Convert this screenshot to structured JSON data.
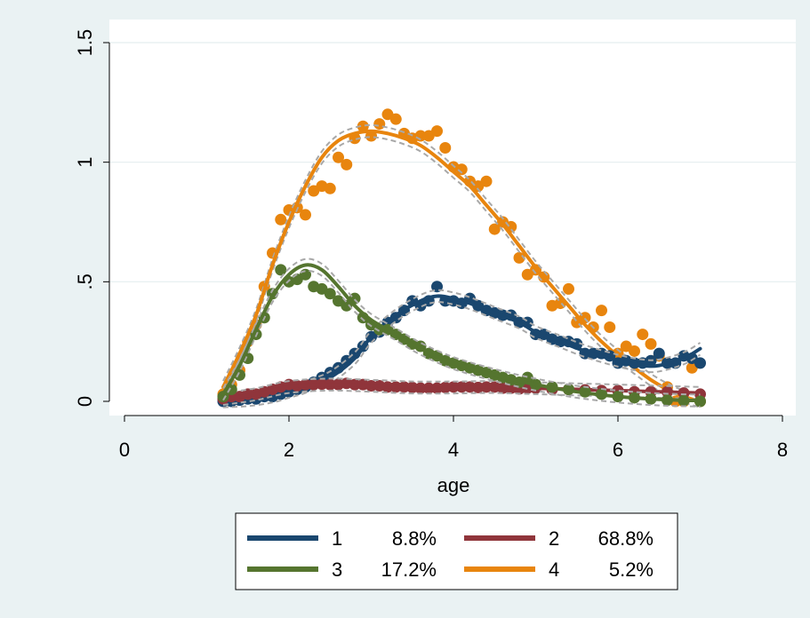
{
  "chart_data": {
    "type": "line",
    "title": "",
    "xlabel": "age",
    "ylabel": "",
    "xlim": [
      0,
      8
    ],
    "ylim": [
      0,
      1.5
    ],
    "x_ticks": [
      0,
      2,
      4,
      6,
      8
    ],
    "x_tick_labels": [
      "0",
      "2",
      "4",
      "6",
      "8"
    ],
    "y_ticks": [
      0,
      0.5,
      1,
      1.5
    ],
    "y_tick_labels": [
      "0",
      ".5",
      "1",
      "1.5"
    ],
    "grid": "horizontal",
    "legend_position": "bottom",
    "series": [
      {
        "name": "1",
        "share": "8.8%",
        "color": "#1a476f",
        "fit": [
          [
            1.2,
            0.0
          ],
          [
            1.5,
            0.005
          ],
          [
            1.8,
            0.02
          ],
          [
            2.0,
            0.04
          ],
          [
            2.2,
            0.06
          ],
          [
            2.5,
            0.1
          ],
          [
            2.8,
            0.18
          ],
          [
            3.0,
            0.27
          ],
          [
            3.3,
            0.36
          ],
          [
            3.6,
            0.42
          ],
          [
            3.8,
            0.44
          ],
          [
            4.0,
            0.43
          ],
          [
            4.2,
            0.41
          ],
          [
            4.5,
            0.37
          ],
          [
            4.8,
            0.33
          ],
          [
            5.0,
            0.29
          ],
          [
            5.3,
            0.25
          ],
          [
            5.6,
            0.21
          ],
          [
            6.0,
            0.17
          ],
          [
            6.3,
            0.15
          ],
          [
            6.5,
            0.15
          ],
          [
            6.8,
            0.18
          ],
          [
            7.0,
            0.22
          ]
        ],
        "points": [
          [
            1.2,
            0.0
          ],
          [
            1.3,
            0.0
          ],
          [
            1.4,
            0.005
          ],
          [
            1.5,
            0.01
          ],
          [
            1.6,
            0.01
          ],
          [
            1.7,
            0.02
          ],
          [
            1.8,
            0.02
          ],
          [
            1.9,
            0.03
          ],
          [
            2.0,
            0.04
          ],
          [
            2.1,
            0.05
          ],
          [
            2.2,
            0.06
          ],
          [
            2.3,
            0.08
          ],
          [
            2.4,
            0.1
          ],
          [
            2.5,
            0.12
          ],
          [
            2.6,
            0.14
          ],
          [
            2.7,
            0.17
          ],
          [
            2.8,
            0.2
          ],
          [
            2.9,
            0.23
          ],
          [
            3.0,
            0.27
          ],
          [
            3.1,
            0.29
          ],
          [
            3.2,
            0.33
          ],
          [
            3.3,
            0.35
          ],
          [
            3.4,
            0.38
          ],
          [
            3.5,
            0.42
          ],
          [
            3.6,
            0.4
          ],
          [
            3.7,
            0.42
          ],
          [
            3.8,
            0.48
          ],
          [
            3.9,
            0.42
          ],
          [
            4.0,
            0.42
          ],
          [
            4.1,
            0.41
          ],
          [
            4.2,
            0.43
          ],
          [
            4.3,
            0.4
          ],
          [
            4.4,
            0.38
          ],
          [
            4.5,
            0.37
          ],
          [
            4.6,
            0.36
          ],
          [
            4.7,
            0.36
          ],
          [
            4.8,
            0.33
          ],
          [
            4.9,
            0.33
          ],
          [
            5.0,
            0.28
          ],
          [
            5.1,
            0.28
          ],
          [
            5.2,
            0.26
          ],
          [
            5.3,
            0.25
          ],
          [
            5.4,
            0.25
          ],
          [
            5.5,
            0.24
          ],
          [
            5.6,
            0.2
          ],
          [
            5.7,
            0.2
          ],
          [
            5.8,
            0.2
          ],
          [
            5.9,
            0.19
          ],
          [
            6.0,
            0.16
          ],
          [
            6.1,
            0.17
          ],
          [
            6.2,
            0.16
          ],
          [
            6.3,
            0.16
          ],
          [
            6.4,
            0.17
          ],
          [
            6.5,
            0.2
          ],
          [
            6.6,
            0.16
          ],
          [
            6.7,
            0.16
          ],
          [
            6.8,
            0.19
          ],
          [
            6.9,
            0.18
          ],
          [
            7.0,
            0.16
          ]
        ]
      },
      {
        "name": "2",
        "share": "68.8%",
        "color": "#90353b",
        "fit": [
          [
            1.2,
            0.01
          ],
          [
            1.6,
            0.03
          ],
          [
            2.0,
            0.06
          ],
          [
            2.5,
            0.07
          ],
          [
            3.0,
            0.065
          ],
          [
            3.5,
            0.058
          ],
          [
            4.0,
            0.058
          ],
          [
            4.5,
            0.06
          ],
          [
            5.0,
            0.055
          ],
          [
            5.5,
            0.05
          ],
          [
            6.0,
            0.045
          ],
          [
            6.5,
            0.04
          ],
          [
            7.0,
            0.035
          ]
        ],
        "points": [
          [
            1.2,
            0.01
          ],
          [
            1.3,
            0.02
          ],
          [
            1.4,
            0.02
          ],
          [
            1.5,
            0.03
          ],
          [
            1.6,
            0.03
          ],
          [
            1.7,
            0.04
          ],
          [
            1.8,
            0.05
          ],
          [
            1.9,
            0.06
          ],
          [
            2.0,
            0.07
          ],
          [
            2.1,
            0.065
          ],
          [
            2.2,
            0.07
          ],
          [
            2.3,
            0.07
          ],
          [
            2.4,
            0.072
          ],
          [
            2.5,
            0.07
          ],
          [
            2.6,
            0.07
          ],
          [
            2.7,
            0.075
          ],
          [
            2.8,
            0.07
          ],
          [
            2.9,
            0.07
          ],
          [
            3.0,
            0.065
          ],
          [
            3.1,
            0.065
          ],
          [
            3.2,
            0.06
          ],
          [
            3.3,
            0.06
          ],
          [
            3.4,
            0.06
          ],
          [
            3.5,
            0.058
          ],
          [
            3.6,
            0.055
          ],
          [
            3.7,
            0.055
          ],
          [
            3.8,
            0.055
          ],
          [
            3.9,
            0.058
          ],
          [
            4.0,
            0.06
          ],
          [
            4.1,
            0.06
          ],
          [
            4.2,
            0.06
          ],
          [
            4.3,
            0.058
          ],
          [
            4.4,
            0.06
          ],
          [
            4.5,
            0.06
          ],
          [
            4.6,
            0.055
          ],
          [
            4.7,
            0.055
          ],
          [
            4.8,
            0.052
          ],
          [
            4.9,
            0.055
          ],
          [
            5.0,
            0.055
          ],
          [
            5.2,
            0.05
          ],
          [
            5.4,
            0.05
          ],
          [
            5.6,
            0.048
          ],
          [
            5.8,
            0.045
          ],
          [
            6.0,
            0.045
          ],
          [
            6.2,
            0.04
          ],
          [
            6.4,
            0.04
          ],
          [
            6.6,
            0.04
          ],
          [
            6.8,
            0.035
          ],
          [
            7.0,
            0.03
          ]
        ]
      },
      {
        "name": "3",
        "share": "17.2%",
        "color": "#55752f",
        "fit": [
          [
            1.2,
            0.03
          ],
          [
            1.4,
            0.15
          ],
          [
            1.6,
            0.3
          ],
          [
            1.8,
            0.44
          ],
          [
            2.0,
            0.53
          ],
          [
            2.2,
            0.57
          ],
          [
            2.4,
            0.55
          ],
          [
            2.6,
            0.48
          ],
          [
            2.8,
            0.4
          ],
          [
            3.0,
            0.34
          ],
          [
            3.3,
            0.28
          ],
          [
            3.6,
            0.22
          ],
          [
            4.0,
            0.16
          ],
          [
            4.5,
            0.11
          ],
          [
            5.0,
            0.07
          ],
          [
            5.5,
            0.04
          ],
          [
            6.0,
            0.02
          ],
          [
            6.5,
            0.008
          ],
          [
            7.0,
            0.003
          ]
        ],
        "points": [
          [
            1.2,
            0.02
          ],
          [
            1.3,
            0.05
          ],
          [
            1.4,
            0.11
          ],
          [
            1.5,
            0.18
          ],
          [
            1.6,
            0.28
          ],
          [
            1.7,
            0.35
          ],
          [
            1.8,
            0.45
          ],
          [
            1.9,
            0.55
          ],
          [
            2.0,
            0.5
          ],
          [
            2.1,
            0.51
          ],
          [
            2.2,
            0.53
          ],
          [
            2.3,
            0.48
          ],
          [
            2.4,
            0.47
          ],
          [
            2.5,
            0.45
          ],
          [
            2.6,
            0.42
          ],
          [
            2.7,
            0.4
          ],
          [
            2.8,
            0.43
          ],
          [
            2.9,
            0.35
          ],
          [
            3.0,
            0.32
          ],
          [
            3.1,
            0.3
          ],
          [
            3.2,
            0.3
          ],
          [
            3.3,
            0.28
          ],
          [
            3.4,
            0.26
          ],
          [
            3.5,
            0.24
          ],
          [
            3.6,
            0.23
          ],
          [
            3.7,
            0.2
          ],
          [
            3.8,
            0.19
          ],
          [
            3.9,
            0.17
          ],
          [
            4.0,
            0.16
          ],
          [
            4.1,
            0.15
          ],
          [
            4.2,
            0.14
          ],
          [
            4.3,
            0.13
          ],
          [
            4.4,
            0.12
          ],
          [
            4.5,
            0.11
          ],
          [
            4.6,
            0.1
          ],
          [
            4.7,
            0.09
          ],
          [
            4.8,
            0.08
          ],
          [
            4.9,
            0.1
          ],
          [
            5.0,
            0.07
          ],
          [
            5.2,
            0.06
          ],
          [
            5.4,
            0.05
          ],
          [
            5.6,
            0.04
          ],
          [
            5.8,
            0.03
          ],
          [
            6.0,
            0.02
          ],
          [
            6.2,
            0.015
          ],
          [
            6.4,
            0.01
          ],
          [
            6.6,
            0.005
          ],
          [
            6.8,
            0.003
          ],
          [
            7.0,
            0.0
          ]
        ]
      },
      {
        "name": "4",
        "share": "5.2%",
        "color": "#e8850e",
        "fit": [
          [
            1.2,
            0.06
          ],
          [
            1.4,
            0.2
          ],
          [
            1.6,
            0.36
          ],
          [
            1.8,
            0.57
          ],
          [
            2.0,
            0.75
          ],
          [
            2.2,
            0.9
          ],
          [
            2.4,
            1.02
          ],
          [
            2.6,
            1.09
          ],
          [
            2.8,
            1.12
          ],
          [
            3.0,
            1.13
          ],
          [
            3.2,
            1.12
          ],
          [
            3.4,
            1.1
          ],
          [
            3.6,
            1.07
          ],
          [
            3.8,
            1.02
          ],
          [
            4.0,
            0.96
          ],
          [
            4.2,
            0.9
          ],
          [
            4.4,
            0.82
          ],
          [
            4.6,
            0.74
          ],
          [
            4.8,
            0.65
          ],
          [
            5.0,
            0.56
          ],
          [
            5.2,
            0.48
          ],
          [
            5.4,
            0.4
          ],
          [
            5.6,
            0.32
          ],
          [
            5.8,
            0.25
          ],
          [
            6.0,
            0.19
          ],
          [
            6.2,
            0.14
          ],
          [
            6.4,
            0.09
          ],
          [
            6.6,
            0.05
          ],
          [
            6.8,
            0.02
          ],
          [
            7.0,
            0.0
          ]
        ],
        "points": [
          [
            1.2,
            0.03
          ],
          [
            1.3,
            0.07
          ],
          [
            1.4,
            0.13
          ],
          [
            1.5,
            0.25
          ],
          [
            1.6,
            0.32
          ],
          [
            1.7,
            0.48
          ],
          [
            1.8,
            0.62
          ],
          [
            1.9,
            0.76
          ],
          [
            2.0,
            0.8
          ],
          [
            2.1,
            0.81
          ],
          [
            2.2,
            0.78
          ],
          [
            2.3,
            0.88
          ],
          [
            2.4,
            0.9
          ],
          [
            2.5,
            0.89
          ],
          [
            2.6,
            1.02
          ],
          [
            2.7,
            0.99
          ],
          [
            2.8,
            1.1
          ],
          [
            2.9,
            1.15
          ],
          [
            3.0,
            1.11
          ],
          [
            3.1,
            1.16
          ],
          [
            3.2,
            1.2
          ],
          [
            3.3,
            1.18
          ],
          [
            3.4,
            1.12
          ],
          [
            3.5,
            1.1
          ],
          [
            3.6,
            1.11
          ],
          [
            3.7,
            1.11
          ],
          [
            3.8,
            1.13
          ],
          [
            3.9,
            1.06
          ],
          [
            4.0,
            0.98
          ],
          [
            4.1,
            0.97
          ],
          [
            4.2,
            0.92
          ],
          [
            4.3,
            0.9
          ],
          [
            4.4,
            0.92
          ],
          [
            4.5,
            0.72
          ],
          [
            4.6,
            0.75
          ],
          [
            4.7,
            0.73
          ],
          [
            4.8,
            0.6
          ],
          [
            4.9,
            0.53
          ],
          [
            5.0,
            0.55
          ],
          [
            5.1,
            0.52
          ],
          [
            5.2,
            0.4
          ],
          [
            5.3,
            0.41
          ],
          [
            5.4,
            0.47
          ],
          [
            5.5,
            0.33
          ],
          [
            5.6,
            0.35
          ],
          [
            5.7,
            0.31
          ],
          [
            5.8,
            0.38
          ],
          [
            5.9,
            0.31
          ],
          [
            6.0,
            0.2
          ],
          [
            6.1,
            0.23
          ],
          [
            6.2,
            0.21
          ],
          [
            6.3,
            0.28
          ],
          [
            6.4,
            0.24
          ],
          [
            6.5,
            0.19
          ],
          [
            6.6,
            0.06
          ],
          [
            6.7,
            0.0
          ],
          [
            6.8,
            0.0
          ],
          [
            6.9,
            0.14
          ],
          [
            7.0,
            0.0
          ]
        ]
      }
    ]
  }
}
